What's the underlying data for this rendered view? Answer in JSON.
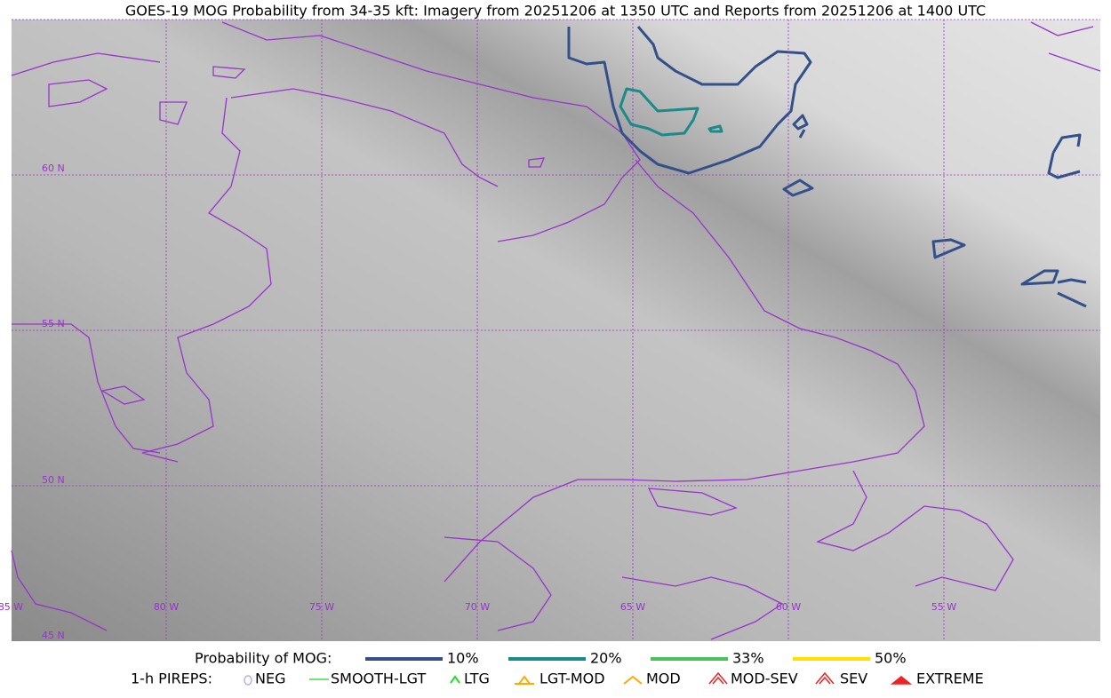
{
  "title": "GOES-19 MOG Probability from 34-35 kft: Imagery from 20251206 at 1350 UTC and Reports from 20251206 at 1400 UTC",
  "map": {
    "lat_labels": [
      "60 N",
      "55 N",
      "50 N",
      "45 N"
    ],
    "lon_labels": [
      "85 W",
      "80 W",
      "75 W",
      "70 W",
      "65 W",
      "60 W",
      "55 W"
    ]
  },
  "legend": {
    "probability": {
      "title": "Probability of MOG:",
      "items": [
        {
          "label": "10%",
          "color": "#33508a"
        },
        {
          "label": "20%",
          "color": "#1a8a8a"
        },
        {
          "label": "33%",
          "color": "#4cc05a"
        },
        {
          "label": "50%",
          "color": "#ffe000"
        }
      ]
    },
    "pireps": {
      "title": "1-h PIREPS:",
      "items": [
        "NEG",
        "SMOOTH-LGT",
        "LTG",
        "LGT-MOD",
        "MOD",
        "MOD-SEV",
        "SEV",
        "EXTREME"
      ]
    }
  }
}
